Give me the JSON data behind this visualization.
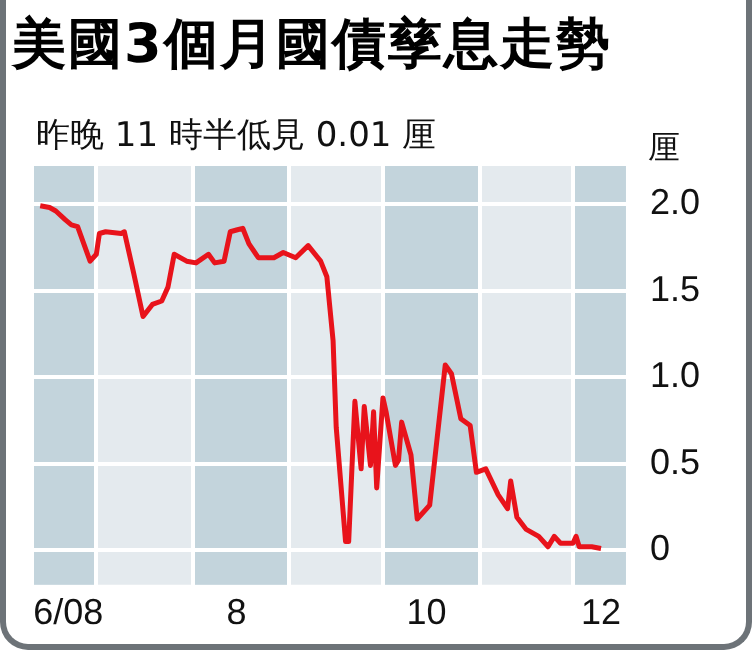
{
  "chart_data": {
    "type": "line",
    "title": "美國3個月國債孳息走勢",
    "subtitle": "昨晚 11 時半低見 0.01 厘",
    "ylabel": "厘",
    "series": [
      {
        "color": "#e8131b",
        "x": [
          "2008-06-13",
          "2008-06-16",
          "2008-06-18",
          "2008-06-21",
          "2008-06-23",
          "2008-06-25",
          "2008-06-29",
          "2008-07-01",
          "2008-07-02",
          "2008-07-04",
          "2008-07-09",
          "2008-07-10",
          "2008-07-13",
          "2008-07-16",
          "2008-07-19",
          "2008-07-22",
          "2008-07-24",
          "2008-07-26",
          "2008-07-30",
          "2008-08-02",
          "2008-08-06",
          "2008-08-08",
          "2008-08-11",
          "2008-08-13",
          "2008-08-15",
          "2008-08-17",
          "2008-08-19",
          "2008-08-22",
          "2008-08-27",
          "2008-08-30",
          "2008-09-03",
          "2008-09-07",
          "2008-09-11",
          "2008-09-13",
          "2008-09-15",
          "2008-09-16",
          "2008-09-19",
          "2008-09-20",
          "2008-09-22",
          "2008-09-24",
          "2008-09-25",
          "2008-09-27",
          "2008-09-28",
          "2008-09-29",
          "2008-10-01",
          "2008-10-02",
          "2008-10-05",
          "2008-10-06",
          "2008-10-07",
          "2008-10-10",
          "2008-10-12",
          "2008-10-16",
          "2008-10-21",
          "2008-10-23",
          "2008-10-26",
          "2008-10-29",
          "2008-10-31",
          "2008-11-03",
          "2008-11-07",
          "2008-11-10",
          "2008-11-11",
          "2008-11-13",
          "2008-11-16",
          "2008-11-20",
          "2008-11-23",
          "2008-11-25",
          "2008-11-27",
          "2008-12-01",
          "2008-12-02",
          "2008-12-03",
          "2008-12-07",
          "2008-12-10"
        ],
        "values": [
          1.99,
          1.98,
          1.96,
          1.91,
          1.88,
          1.87,
          1.67,
          1.71,
          1.83,
          1.84,
          1.83,
          1.84,
          1.6,
          1.35,
          1.42,
          1.44,
          1.52,
          1.71,
          1.67,
          1.66,
          1.71,
          1.66,
          1.67,
          1.84,
          1.85,
          1.86,
          1.77,
          1.69,
          1.69,
          1.72,
          1.69,
          1.76,
          1.67,
          1.58,
          1.21,
          0.71,
          0.05,
          0.05,
          0.86,
          0.47,
          0.83,
          0.49,
          0.8,
          0.36,
          0.88,
          0.8,
          0.49,
          0.52,
          0.74,
          0.55,
          0.18,
          0.26,
          1.07,
          1.02,
          0.76,
          0.72,
          0.45,
          0.47,
          0.32,
          0.24,
          0.4,
          0.19,
          0.12,
          0.08,
          0.02,
          0.08,
          0.04,
          0.04,
          0.08,
          0.02,
          0.02,
          0.01
        ]
      }
    ],
    "xlim": [
      "2008-06-11",
      "2008-12-18"
    ],
    "xticks": [
      {
        "value": "2008-06-22",
        "label": "6/08"
      },
      {
        "value": "2008-07-01",
        "label": null
      },
      {
        "value": "2008-08-01",
        "label": null
      },
      {
        "value": "2008-08-15",
        "label": "8"
      },
      {
        "value": "2008-09-01",
        "label": null
      },
      {
        "value": "2008-10-01",
        "label": null
      },
      {
        "value": "2008-10-15",
        "label": "10"
      },
      {
        "value": "2008-11-01",
        "label": null
      },
      {
        "value": "2008-12-01",
        "label": null
      },
      {
        "value": "2008-12-10",
        "label": "12"
      }
    ],
    "ylim": [
      -0.2,
      2.22
    ],
    "yticks": [
      0,
      0.5,
      {
        "value": 1,
        "label": "1.0"
      },
      1.5,
      {
        "value": 2,
        "label": "2.0"
      }
    ],
    "bands": [
      {
        "axis": "x",
        "from": "2008-06-11",
        "to": "2008-07-01",
        "color": "#c3d4dc"
      },
      {
        "axis": "x",
        "from": "2008-08-01",
        "to": "2008-09-01",
        "color": "#c3d4dc"
      },
      {
        "axis": "x",
        "from": "2008-10-01",
        "to": "2008-11-01",
        "color": "#c3d4dc"
      },
      {
        "axis": "x",
        "from": "2008-12-01",
        "to": "2008-12-18",
        "color": "#c3d4dc"
      }
    ],
    "grid": true,
    "legend": false,
    "marker": "none",
    "line_style": "solid"
  }
}
